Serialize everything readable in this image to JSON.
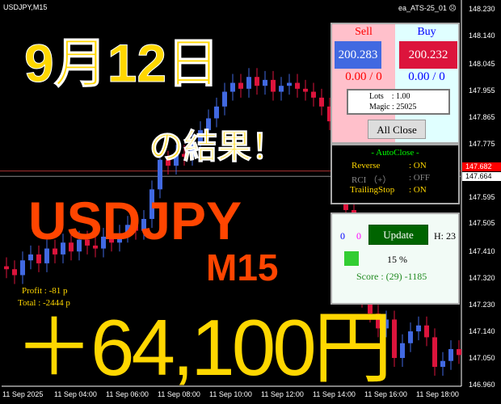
{
  "chart": {
    "symbol": "USDJPY,M15",
    "ea_name": "ea_ATS-25_01",
    "ea_status_icon": "sad-face-icon",
    "price_axis": [
      "148.230",
      "148.140",
      "148.045",
      "147.955",
      "147.865",
      "147.775",
      "147.595",
      "147.505",
      "147.410",
      "147.320",
      "147.230",
      "147.140",
      "147.050",
      "146.960"
    ],
    "price_range": [
      146.96,
      148.23
    ],
    "ask_tag": "147.682",
    "bid_tag": "147.664",
    "time_axis": [
      "11 Sep 2025",
      "11 Sep 04:00",
      "11 Sep 06:00",
      "11 Sep 08:00",
      "11 Sep 10:00",
      "11 Sep 12:00",
      "11 Sep 14:00",
      "11 Sep 16:00",
      "11 Sep 18:00"
    ],
    "colors": {
      "bull": "#4169e1",
      "bear": "#dc143c",
      "ask": "#ff0000",
      "bid": "#ffffff"
    },
    "profit": "Profit : -81 p",
    "total": "Total : -2444 p"
  },
  "overlay": {
    "date": "9月12日",
    "result": "の結果！",
    "pair": "USDJPY",
    "timeframe": "M15",
    "amount": "＋64,100円"
  },
  "trade_panel": {
    "sell_label": "Sell",
    "buy_label": "Buy",
    "sell_price": "200.283",
    "buy_price": "200.232",
    "sell_pl": "0.00 / 0",
    "buy_pl": "0.00 / 0",
    "lots": "Lots    : 1.00",
    "magic": "Magic : 25025",
    "all_close": "All Close"
  },
  "autoclose": {
    "title": "- AutoClose -",
    "rows": [
      {
        "label": "Reverse",
        "value": ": ON"
      },
      {
        "label": "RCI （+）",
        "value": ": OFF"
      },
      {
        "label": "TrailingStop",
        "value": ": ON"
      }
    ]
  },
  "score_panel": {
    "count_blue": "0",
    "count_magenta": "0",
    "update": "Update",
    "hours": "H: 23",
    "percent": "15 %",
    "score": "Score : (29) -1185"
  }
}
